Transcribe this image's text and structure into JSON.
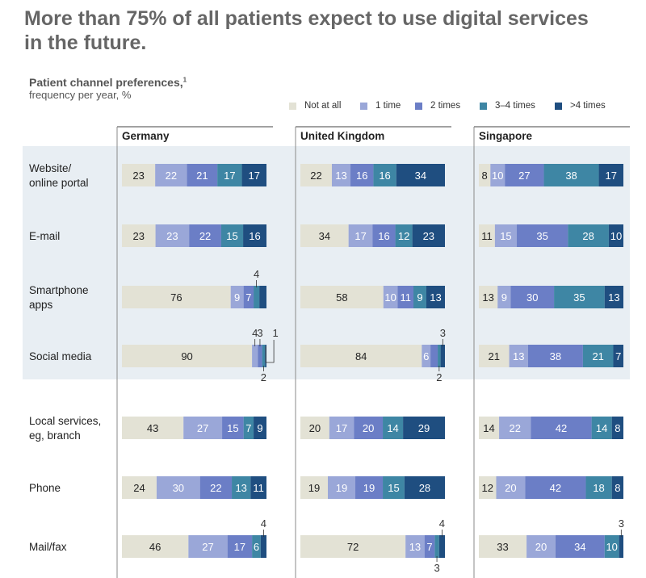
{
  "title": "More than 75% of all patients expect to use digital services in the future.",
  "subtitle": "Patient channel preferences,",
  "subtitle_sup": "1",
  "subtitle2": "frequency per year, %",
  "chart_data": {
    "type": "bar",
    "orientation": "horizontal-stacked-100",
    "legend_position": "top-right",
    "series_names": [
      "Not at all",
      "1 time",
      "2 times",
      "3–4 times",
      ">4 times"
    ],
    "colors": [
      "#e3e2d5",
      "#9aa7d8",
      "#6b7ec6",
      "#3e86a4",
      "#1f4e80"
    ],
    "countries": [
      "Germany",
      "United Kingdom",
      "Singapore"
    ],
    "channels": [
      {
        "label": [
          "Website/",
          "online portal"
        ],
        "group": "digital"
      },
      {
        "label": [
          "E-mail"
        ],
        "group": "digital"
      },
      {
        "label": [
          "Smartphone",
          "apps"
        ],
        "group": "digital"
      },
      {
        "label": [
          "Social media"
        ],
        "group": "digital"
      },
      {
        "label": [
          "Local services,",
          "eg, branch"
        ],
        "group": "traditional"
      },
      {
        "label": [
          "Phone"
        ],
        "group": "traditional"
      },
      {
        "label": [
          "Mail/fax"
        ],
        "group": "traditional"
      }
    ],
    "values": {
      "Germany": [
        [
          23,
          22,
          21,
          17,
          17
        ],
        [
          23,
          23,
          22,
          15,
          16
        ],
        [
          76,
          9,
          7,
          4,
          5
        ],
        [
          90,
          4,
          3,
          2,
          1
        ],
        [
          43,
          27,
          15,
          7,
          9
        ],
        [
          24,
          30,
          22,
          13,
          11
        ],
        [
          46,
          27,
          17,
          6,
          4
        ]
      ],
      "United Kingdom": [
        [
          22,
          13,
          16,
          16,
          34
        ],
        [
          34,
          17,
          16,
          12,
          23
        ],
        [
          58,
          10,
          11,
          9,
          13
        ],
        [
          84,
          6,
          5,
          2,
          3
        ],
        [
          20,
          17,
          20,
          14,
          29
        ],
        [
          19,
          19,
          19,
          15,
          28
        ],
        [
          72,
          13,
          7,
          3,
          4
        ]
      ],
      "Singapore": [
        [
          8,
          10,
          27,
          38,
          17
        ],
        [
          11,
          15,
          35,
          28,
          10
        ],
        [
          13,
          9,
          30,
          35,
          13
        ],
        [
          21,
          13,
          38,
          21,
          7
        ],
        [
          14,
          22,
          42,
          14,
          8
        ],
        [
          12,
          20,
          42,
          18,
          8
        ],
        [
          33,
          20,
          34,
          10,
          3
        ]
      ]
    },
    "callouts": [
      {
        "country": "Germany",
        "row": 2,
        "segment": 3,
        "text": "4",
        "side": "above"
      },
      {
        "country": "Germany",
        "row": 3,
        "segment": 1,
        "text": "4",
        "side": "above"
      },
      {
        "country": "Germany",
        "row": 3,
        "segment": 2,
        "text": "3",
        "side": "above"
      },
      {
        "country": "Germany",
        "row": 3,
        "segment": 4,
        "text": "1",
        "side": "above-right"
      },
      {
        "country": "Germany",
        "row": 3,
        "segment": 3,
        "text": "2",
        "side": "below"
      },
      {
        "country": "Germany",
        "row": 6,
        "segment": 4,
        "text": "4",
        "side": "above"
      },
      {
        "country": "United Kingdom",
        "row": 3,
        "segment": 4,
        "text": "3",
        "side": "above"
      },
      {
        "country": "United Kingdom",
        "row": 3,
        "segment": 3,
        "text": "2",
        "side": "below"
      },
      {
        "country": "United Kingdom",
        "row": 6,
        "segment": 4,
        "text": "4",
        "side": "above"
      },
      {
        "country": "United Kingdom",
        "row": 6,
        "segment": 3,
        "text": "3",
        "side": "below"
      },
      {
        "country": "Singapore",
        "row": 6,
        "segment": 4,
        "text": "3",
        "side": "above"
      }
    ]
  }
}
